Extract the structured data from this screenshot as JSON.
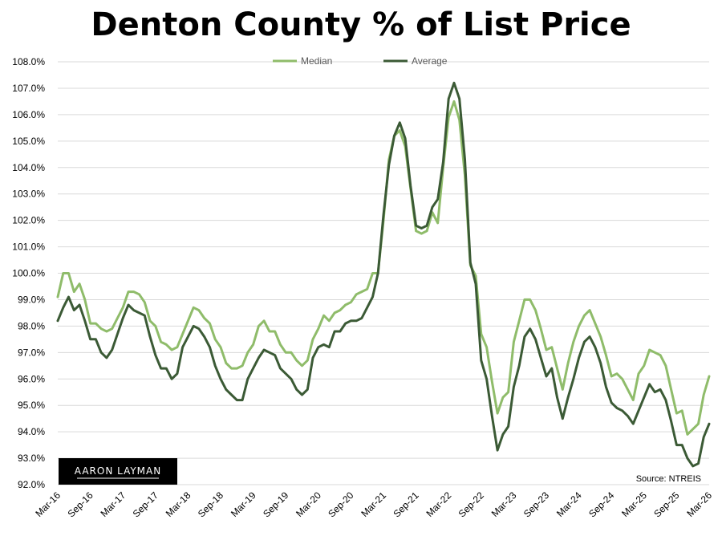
{
  "chart_data": {
    "type": "line",
    "title": "Denton County % of List Price",
    "source": "Source: NTREIS",
    "watermark": "AARON LAYMAN",
    "legend_position": "top-center",
    "ylim": [
      92.0,
      108.0
    ],
    "y_tick_labels": [
      "92.0%",
      "93.0%",
      "94.0%",
      "95.0%",
      "96.0%",
      "97.0%",
      "98.0%",
      "99.0%",
      "100.0%",
      "101.0%",
      "102.0%",
      "103.0%",
      "104.0%",
      "105.0%",
      "106.0%",
      "107.0%",
      "108.0%"
    ],
    "x_tick_labels": [
      "Mar-16",
      "Sep-16",
      "Mar-17",
      "Sep-17",
      "Mar-18",
      "Sep-18",
      "Mar-19",
      "Sep-19",
      "Mar-20",
      "Sep-20",
      "Mar-21",
      "Sep-21",
      "Mar-22",
      "Sep-22",
      "Mar-23",
      "Sep-23",
      "Mar-24",
      "Sep-24",
      "Mar-25",
      "Sep-25",
      "Mar-26"
    ],
    "x_start": "Mar-16",
    "x_end": "Mar-26",
    "grid": "horizontal",
    "series": [
      {
        "name": "Median",
        "color": "#8fbc6a",
        "values": [
          99.1,
          100.0,
          100.0,
          99.3,
          99.6,
          99.0,
          98.1,
          98.1,
          97.9,
          97.8,
          97.9,
          98.3,
          98.7,
          99.3,
          99.3,
          99.2,
          98.9,
          98.2,
          98.0,
          97.4,
          97.3,
          97.1,
          97.2,
          97.7,
          98.2,
          98.7,
          98.6,
          98.3,
          98.1,
          97.5,
          97.2,
          96.6,
          96.4,
          96.4,
          96.5,
          97.0,
          97.3,
          98.0,
          98.2,
          97.8,
          97.8,
          97.3,
          97.0,
          97.0,
          96.7,
          96.5,
          96.7,
          97.5,
          97.9,
          98.4,
          98.2,
          98.5,
          98.6,
          98.8,
          98.9,
          99.2,
          99.3,
          99.4,
          100.0,
          100.0,
          102.0,
          104.3,
          105.2,
          105.4,
          104.8,
          103.2,
          101.6,
          101.5,
          101.6,
          102.3,
          101.9,
          104.0,
          105.9,
          106.5,
          105.8,
          103.7,
          100.3,
          99.9,
          97.7,
          97.2,
          95.9,
          94.7,
          95.3,
          95.5,
          97.4,
          98.2,
          99.0,
          99.0,
          98.6,
          97.9,
          97.1,
          97.2,
          96.4,
          95.6,
          96.6,
          97.4,
          98.0,
          98.4,
          98.6,
          98.1,
          97.6,
          96.9,
          96.1,
          96.2,
          96.0,
          95.6,
          95.2,
          96.2,
          96.5,
          97.1,
          97.0,
          96.9,
          96.5,
          95.6,
          94.7,
          94.8,
          93.9,
          94.1,
          94.3,
          95.4,
          96.1
        ]
      },
      {
        "name": "Average",
        "color": "#3b5a35",
        "values": [
          98.2,
          98.7,
          99.1,
          98.6,
          98.8,
          98.2,
          97.5,
          97.5,
          97.0,
          96.8,
          97.1,
          97.7,
          98.3,
          98.8,
          98.6,
          98.5,
          98.4,
          97.6,
          96.9,
          96.4,
          96.4,
          96.0,
          96.2,
          97.2,
          97.6,
          98.0,
          97.9,
          97.6,
          97.2,
          96.5,
          96.0,
          95.6,
          95.4,
          95.2,
          95.2,
          96.0,
          96.4,
          96.8,
          97.1,
          97.0,
          96.9,
          96.4,
          96.2,
          96.0,
          95.6,
          95.4,
          95.6,
          96.8,
          97.2,
          97.3,
          97.2,
          97.8,
          97.8,
          98.1,
          98.2,
          98.2,
          98.3,
          98.7,
          99.1,
          100.0,
          102.2,
          104.1,
          105.2,
          105.7,
          105.1,
          103.3,
          101.8,
          101.7,
          101.8,
          102.5,
          102.8,
          104.2,
          106.6,
          107.2,
          106.6,
          104.3,
          100.4,
          99.6,
          96.7,
          96.0,
          94.6,
          93.3,
          93.9,
          94.2,
          95.7,
          96.5,
          97.6,
          97.9,
          97.5,
          96.8,
          96.1,
          96.4,
          95.3,
          94.5,
          95.3,
          96.0,
          96.8,
          97.4,
          97.6,
          97.2,
          96.6,
          95.7,
          95.1,
          94.9,
          94.8,
          94.6,
          94.3,
          94.8,
          95.3,
          95.8,
          95.5,
          95.6,
          95.2,
          94.4,
          93.5,
          93.5,
          93.0,
          92.7,
          92.8,
          93.8,
          94.3
        ]
      }
    ]
  }
}
